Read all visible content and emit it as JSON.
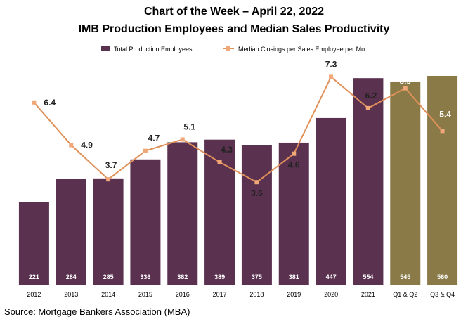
{
  "colors": {
    "bar_primary": "#5b3150",
    "bar_highlight": "#8a7a47",
    "line": "#e0915a",
    "marker": "#f0a878",
    "axis": "#cfcfcf"
  },
  "chart_data": {
    "type": "bar",
    "title": "Chart of the Week – April 22, 2022",
    "subtitle": "IMB Production Employees and Median Sales Productivity",
    "categories": [
      "2012",
      "2013",
      "2014",
      "2015",
      "2016",
      "2017",
      "2018",
      "2019",
      "2020",
      "2021",
      "Q1 & Q2",
      "Q3 & Q4"
    ],
    "series": [
      {
        "name": "Total Production Employees",
        "type": "bar",
        "values": [
          221,
          284,
          285,
          336,
          382,
          389,
          375,
          381,
          447,
          554,
          545,
          560
        ]
      },
      {
        "name": "Median Closings per Sales Employee per Mo.",
        "type": "line",
        "values": [
          6.4,
          4.9,
          3.7,
          4.7,
          5.1,
          4.3,
          3.6,
          4.6,
          7.3,
          6.2,
          6.9,
          5.4
        ]
      }
    ],
    "highlight_categories": [
      "Q1 & Q2",
      "Q3 & Q4"
    ],
    "legend_position": "top-center",
    "bar_ylim": [
      0,
      600
    ],
    "line_ylim": [
      0,
      8.5
    ],
    "grid": false
  },
  "source_text": "Source:  Mortgage Bankers Association (MBA)"
}
